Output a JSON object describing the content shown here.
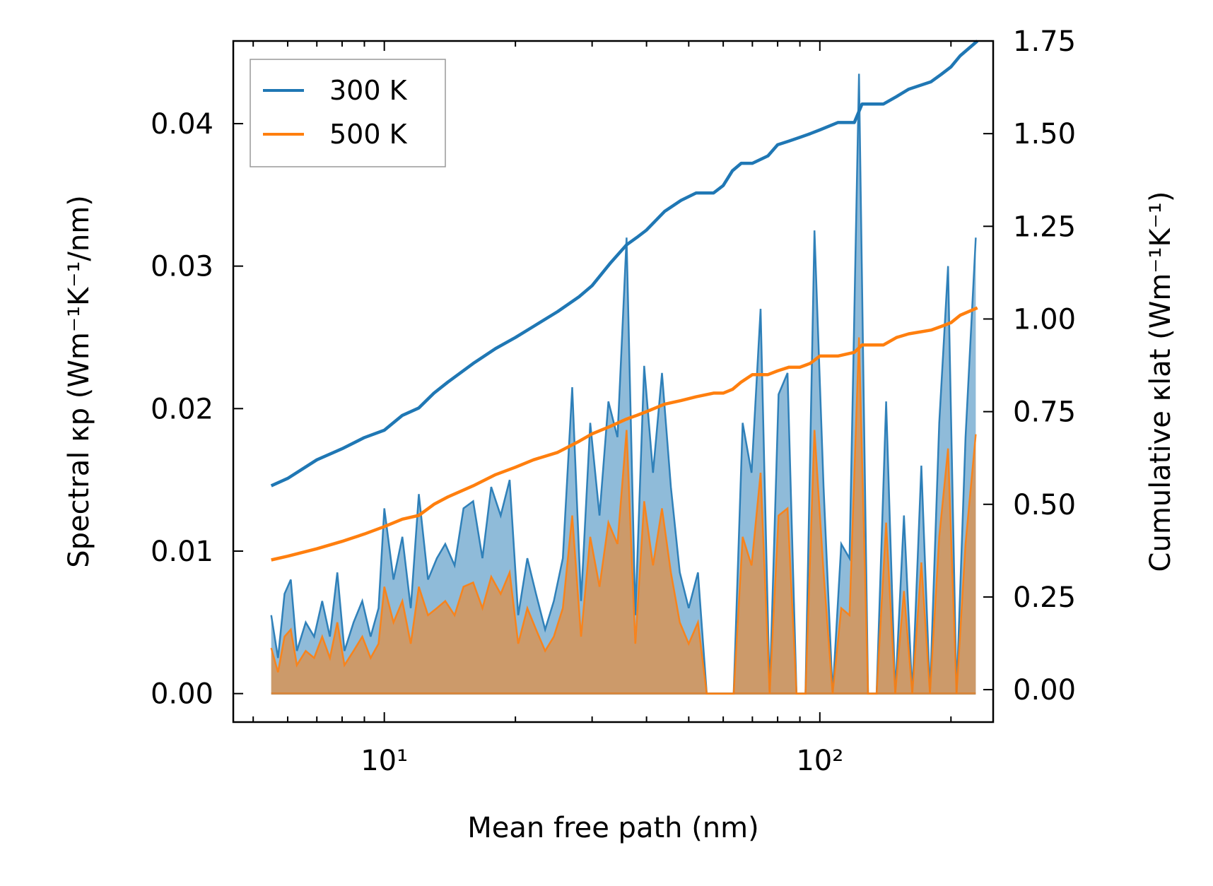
{
  "chart_data": {
    "type": "line",
    "xlabel": "Mean free path (nm)",
    "ylabel_left": "Spectral κp (Wm⁻¹K⁻¹/nm)",
    "ylabel_right": "Cumulative κlat (Wm⁻¹K⁻¹)",
    "x_scale": "log",
    "xlim": [
      4.5,
      250
    ],
    "ylim_left": [
      -0.002,
      0.0458
    ],
    "ylim_right": [
      -0.0875,
      1.75
    ],
    "x_ticks": [
      {
        "value": 10,
        "label": "10¹"
      },
      {
        "value": 100,
        "label": "10²"
      }
    ],
    "y_ticks_left": [
      "0.00",
      "0.01",
      "0.02",
      "0.03",
      "0.04"
    ],
    "y_ticks_left_values": [
      0,
      0.01,
      0.02,
      0.03,
      0.04
    ],
    "y_ticks_right": [
      "0.00",
      "0.25",
      "0.50",
      "0.75",
      "1.00",
      "1.25",
      "1.50",
      "1.75"
    ],
    "y_ticks_right_values": [
      0,
      0.25,
      0.5,
      0.75,
      1.0,
      1.25,
      1.5,
      1.75
    ],
    "legend": {
      "position": "upper-left",
      "entries": [
        {
          "label": "300 K",
          "color": "#1f77b4"
        },
        {
          "label": "500 K",
          "color": "#ff7f0e"
        }
      ]
    },
    "series": [
      {
        "name": "300 K",
        "color": "#1f77b4",
        "spectral": {
          "x": [
            5.5,
            5.7,
            5.9,
            6.1,
            6.3,
            6.6,
            6.9,
            7.2,
            7.5,
            7.8,
            8.1,
            8.5,
            8.9,
            9.3,
            9.7,
            10.0,
            10.5,
            11.0,
            11.5,
            12.0,
            12.6,
            13.2,
            13.8,
            14.5,
            15.2,
            16.0,
            16.8,
            17.6,
            18.5,
            19.4,
            20.3,
            21.3,
            22.3,
            23.4,
            24.5,
            25.7,
            27.0,
            28.3,
            29.7,
            31.2,
            32.7,
            34.3,
            36.0,
            37.7,
            39.5,
            41.4,
            43.4,
            45.5,
            47.7,
            50.0,
            52.5,
            55.0,
            57.7,
            60.5,
            63.4,
            66.5,
            69.7,
            73.1,
            76.7,
            80.4,
            84.3,
            88.4,
            92.7,
            97.2,
            102.0,
            107.0,
            112.0,
            117.0,
            123.0,
            129.0,
            135.0,
            142.0,
            149.0,
            156.0,
            163.0,
            171.0,
            179.0,
            188.0,
            197.0,
            206.0,
            216.0,
            228.0
          ],
          "y": [
            0.0055,
            0.0025,
            0.007,
            0.008,
            0.003,
            0.005,
            0.004,
            0.0065,
            0.004,
            0.0085,
            0.003,
            0.005,
            0.0065,
            0.004,
            0.006,
            0.013,
            0.008,
            0.011,
            0.006,
            0.014,
            0.008,
            0.0095,
            0.0105,
            0.009,
            0.013,
            0.0135,
            0.0095,
            0.0145,
            0.0125,
            0.015,
            0.0055,
            0.0095,
            0.007,
            0.0045,
            0.0065,
            0.0095,
            0.0215,
            0.0065,
            0.019,
            0.0125,
            0.0205,
            0.018,
            0.032,
            0.0055,
            0.023,
            0.0155,
            0.0225,
            0.0145,
            0.0085,
            0.006,
            0.0085,
            0.0,
            0.0,
            0.0,
            0.0,
            0.019,
            0.0155,
            0.027,
            0.0,
            0.021,
            0.0225,
            0.0,
            0.0,
            0.0325,
            0.0145,
            0.0,
            0.0105,
            0.0095,
            0.0435,
            0.0,
            0.0,
            0.0205,
            0.0,
            0.0125,
            0.0,
            0.016,
            0.0,
            0.019,
            0.03,
            0.0,
            0.018,
            0.032
          ]
        },
        "cumulative": {
          "x": [
            5.5,
            6.0,
            7.0,
            8.0,
            9.0,
            10.0,
            11.0,
            12.0,
            13.0,
            14.0,
            16.0,
            18.0,
            20.0,
            22.0,
            25.0,
            28.0,
            30.0,
            33.0,
            36.0,
            38.0,
            40.0,
            44.0,
            48.0,
            52.0,
            57.0,
            60.0,
            63.0,
            66.0,
            70.0,
            76.0,
            80.0,
            85.0,
            90.0,
            95.0,
            100.0,
            110.0,
            120.0,
            125.0,
            140.0,
            150.0,
            160.0,
            180.0,
            190.0,
            200.0,
            210.0,
            230.0
          ],
          "y": [
            0.55,
            0.57,
            0.62,
            0.65,
            0.68,
            0.7,
            0.74,
            0.76,
            0.8,
            0.83,
            0.88,
            0.92,
            0.95,
            0.98,
            1.02,
            1.06,
            1.09,
            1.15,
            1.2,
            1.22,
            1.24,
            1.29,
            1.32,
            1.34,
            1.34,
            1.36,
            1.4,
            1.42,
            1.42,
            1.44,
            1.47,
            1.48,
            1.49,
            1.5,
            1.51,
            1.53,
            1.53,
            1.58,
            1.58,
            1.6,
            1.62,
            1.64,
            1.66,
            1.68,
            1.71,
            1.75
          ]
        }
      },
      {
        "name": "500 K",
        "color": "#ff7f0e",
        "spectral": {
          "x": [
            5.5,
            5.7,
            5.9,
            6.1,
            6.3,
            6.6,
            6.9,
            7.2,
            7.5,
            7.8,
            8.1,
            8.5,
            8.9,
            9.3,
            9.7,
            10.0,
            10.5,
            11.0,
            11.5,
            12.0,
            12.6,
            13.2,
            13.8,
            14.5,
            15.2,
            16.0,
            16.8,
            17.6,
            18.5,
            19.4,
            20.3,
            21.3,
            22.3,
            23.4,
            24.5,
            25.7,
            27.0,
            28.3,
            29.7,
            31.2,
            32.7,
            34.3,
            36.0,
            37.7,
            39.5,
            41.4,
            43.4,
            45.5,
            47.7,
            50.0,
            52.5,
            55.0,
            57.7,
            60.5,
            63.4,
            66.5,
            69.7,
            73.1,
            76.7,
            80.4,
            84.3,
            88.4,
            92.7,
            97.2,
            102.0,
            107.0,
            112.0,
            117.0,
            123.0,
            129.0,
            135.0,
            142.0,
            149.0,
            156.0,
            163.0,
            171.0,
            179.0,
            188.0,
            197.0,
            206.0,
            216.0,
            228.0
          ],
          "y": [
            0.0032,
            0.0015,
            0.004,
            0.0045,
            0.002,
            0.003,
            0.0025,
            0.004,
            0.0025,
            0.005,
            0.002,
            0.003,
            0.004,
            0.0025,
            0.0035,
            0.0075,
            0.005,
            0.0065,
            0.0035,
            0.0075,
            0.0055,
            0.006,
            0.0065,
            0.0055,
            0.0075,
            0.0078,
            0.006,
            0.0082,
            0.007,
            0.0085,
            0.0035,
            0.006,
            0.0045,
            0.003,
            0.004,
            0.006,
            0.0125,
            0.004,
            0.011,
            0.0075,
            0.012,
            0.0105,
            0.0185,
            0.0035,
            0.0135,
            0.009,
            0.013,
            0.0085,
            0.005,
            0.0035,
            0.005,
            0.0,
            0.0,
            0.0,
            0.0,
            0.011,
            0.009,
            0.0155,
            0.0,
            0.0125,
            0.013,
            0.0,
            0.0,
            0.0185,
            0.0085,
            0.0,
            0.006,
            0.0055,
            0.025,
            0.0,
            0.0,
            0.012,
            0.0,
            0.0072,
            0.0,
            0.0092,
            0.0,
            0.011,
            0.0172,
            0.0,
            0.0105,
            0.0182
          ]
        },
        "cumulative": {
          "x": [
            5.5,
            6.0,
            7.0,
            8.0,
            9.0,
            10.0,
            11.0,
            12.0,
            13.0,
            14.0,
            16.0,
            18.0,
            20.0,
            22.0,
            25.0,
            28.0,
            30.0,
            33.0,
            36.0,
            38.0,
            40.0,
            44.0,
            48.0,
            52.0,
            57.0,
            60.0,
            63.0,
            66.0,
            70.0,
            76.0,
            80.0,
            85.0,
            90.0,
            95.0,
            100.0,
            110.0,
            120.0,
            125.0,
            140.0,
            150.0,
            160.0,
            180.0,
            190.0,
            200.0,
            210.0,
            230.0
          ],
          "y": [
            0.35,
            0.36,
            0.38,
            0.4,
            0.42,
            0.44,
            0.46,
            0.47,
            0.5,
            0.52,
            0.55,
            0.58,
            0.6,
            0.62,
            0.64,
            0.67,
            0.69,
            0.71,
            0.73,
            0.74,
            0.75,
            0.77,
            0.78,
            0.79,
            0.8,
            0.8,
            0.81,
            0.83,
            0.85,
            0.85,
            0.86,
            0.87,
            0.87,
            0.88,
            0.9,
            0.9,
            0.91,
            0.93,
            0.93,
            0.95,
            0.96,
            0.97,
            0.98,
            0.99,
            1.01,
            1.03
          ]
        }
      }
    ]
  }
}
